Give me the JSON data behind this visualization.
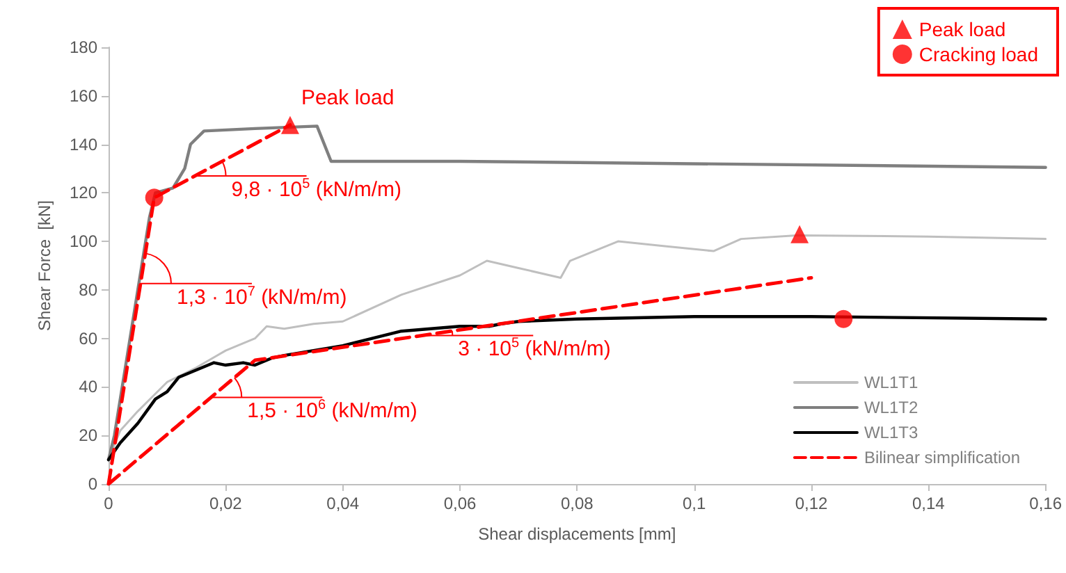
{
  "chart_data": {
    "type": "line",
    "xlabel": "Shear displacements [mm]",
    "ylabel": "Shear Force  [kN]",
    "xlim": [
      0,
      0.16
    ],
    "xticks": [
      0,
      {
        "value": 0.02,
        "label": "0,02"
      },
      {
        "value": 0.04,
        "label": "0,04"
      },
      {
        "value": 0.06,
        "label": "0,06"
      },
      {
        "value": 0.08,
        "label": "0,08"
      },
      {
        "value": 0.1,
        "label": "0,1"
      },
      {
        "value": 0.12,
        "label": "0,12"
      },
      {
        "value": 0.14,
        "label": "0,14"
      },
      {
        "value": 0.16,
        "label": "0,16"
      }
    ],
    "ylim": [
      0,
      180
    ],
    "yticks": [
      0,
      20,
      40,
      60,
      80,
      100,
      120,
      140,
      160,
      180
    ],
    "grid": false,
    "legend": "right",
    "marker": "none",
    "series": [
      {
        "name": "WL1T1",
        "color": "#bfbfbf",
        "x": [
          0,
          0.002,
          0.005,
          0.01,
          0.015,
          0.02,
          0.025,
          0.027,
          0.03,
          0.035,
          0.04,
          0.05,
          0.06,
          0.0646,
          0.07,
          0.0772,
          0.0788,
          0.087,
          0.095,
          0.1033,
          0.108,
          0.1175,
          0.14,
          0.16
        ],
        "values": [
          10,
          22,
          30,
          42,
          48,
          55,
          60,
          65,
          64,
          66,
          67,
          78,
          86,
          92,
          89,
          85,
          92,
          100,
          98,
          96,
          101,
          102.5,
          102,
          101
        ]
      },
      {
        "name": "WL1T2",
        "color": "#7f7f7f",
        "x": [
          0,
          0.001,
          0.003,
          0.005,
          0.007,
          0.008,
          0.011,
          0.013,
          0.014,
          0.0163,
          0.025,
          0.0356,
          0.038,
          0.06,
          0.16
        ],
        "values": [
          10,
          20,
          50,
          80,
          110,
          120,
          122,
          130,
          140,
          145.5,
          146.5,
          147.5,
          133,
          133,
          130.5
        ]
      },
      {
        "name": "WL1T3",
        "color": "#000000",
        "x": [
          0,
          0.002,
          0.005,
          0.008,
          0.01,
          0.012,
          0.015,
          0.018,
          0.02,
          0.023,
          0.025,
          0.028,
          0.03,
          0.04,
          0.045,
          0.05,
          0.06,
          0.065,
          0.067,
          0.07,
          0.08,
          0.1,
          0.12,
          0.16
        ],
        "values": [
          10,
          17,
          25,
          35,
          38,
          44,
          47,
          50,
          49,
          50,
          49,
          52,
          53,
          57,
          60,
          63,
          65,
          65,
          66,
          67,
          68,
          69,
          69,
          68
        ]
      },
      {
        "name": "Bilinear simplification",
        "color": "#ff0000",
        "line_style": "dashed",
        "x": [
          0,
          0.0078,
          0.031,
          null,
          0,
          0.025,
          0.12
        ],
        "values": [
          0,
          118,
          148,
          null,
          0,
          51,
          85
        ]
      },
      {
        "name": "Peak load",
        "type": "scatter",
        "marker": "triangle",
        "color": "#ff0000",
        "x": [
          0.031,
          0.118
        ],
        "values": [
          148,
          103
        ]
      },
      {
        "name": "Cracking load",
        "type": "scatter",
        "marker": "circle",
        "color": "#ff0000",
        "x": [
          0.0078,
          0.1255
        ],
        "values": [
          118,
          68
        ]
      }
    ],
    "annotations": [
      {
        "text": "Peak load",
        "x": 0.031,
        "y": 148
      },
      {
        "text": "1,3 · 10$^{7}$ (kN/m/m)",
        "x": 0.00546,
        "y": 82.6
      },
      {
        "text": "9,8 · 10$^{5}$ (kN/m/m)",
        "x": 0.0148,
        "y": 127
      },
      {
        "text": "1,5 · 10$^{6}$ (kN/m/m)",
        "x": 0.0175,
        "y": 35.7
      },
      {
        "text": "3 · 10$^{5}$ (kN/m/m)",
        "x": 0.0535,
        "y": 61.2
      }
    ]
  }
}
